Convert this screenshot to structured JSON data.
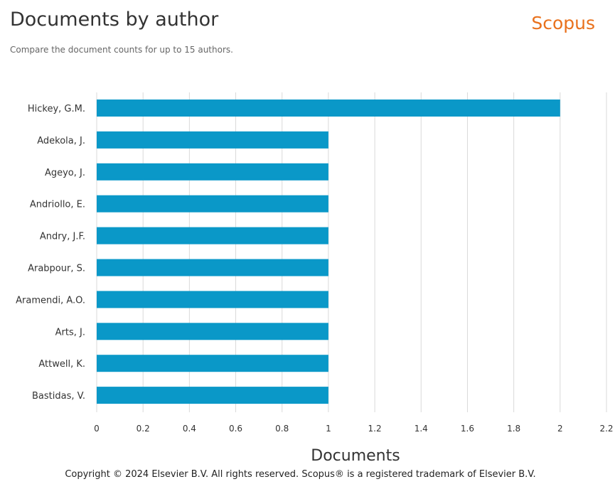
{
  "header": {
    "title": "Documents by author",
    "subtitle": "Compare the document counts for up to 15 authors.",
    "brand": "Scopus"
  },
  "footer": {
    "copyright": "Copyright © 2024 Elsevier B.V. All rights reserved. Scopus® is a registered trademark of Elsevier B.V."
  },
  "chart_data": {
    "type": "bar",
    "orientation": "horizontal",
    "categories": [
      "Hickey, G.M.",
      "Adekola, J.",
      "Ageyo, J.",
      "Andriollo, E.",
      "Andry, J.F.",
      "Arabpour, S.",
      "Aramendi, A.O.",
      "Arts, J.",
      "Attwell, K.",
      "Bastidas, V."
    ],
    "values": [
      2,
      1,
      1,
      1,
      1,
      1,
      1,
      1,
      1,
      1
    ],
    "xlabel": "Documents",
    "ylabel": "",
    "xlim": [
      0,
      2.2
    ],
    "xticks": [
      "0",
      "0.2",
      "0.4",
      "0.6",
      "0.8",
      "1",
      "1.2",
      "1.4",
      "1.6",
      "1.8",
      "2",
      "2.2"
    ],
    "grid": true,
    "bar_color": "#0a98c8"
  }
}
